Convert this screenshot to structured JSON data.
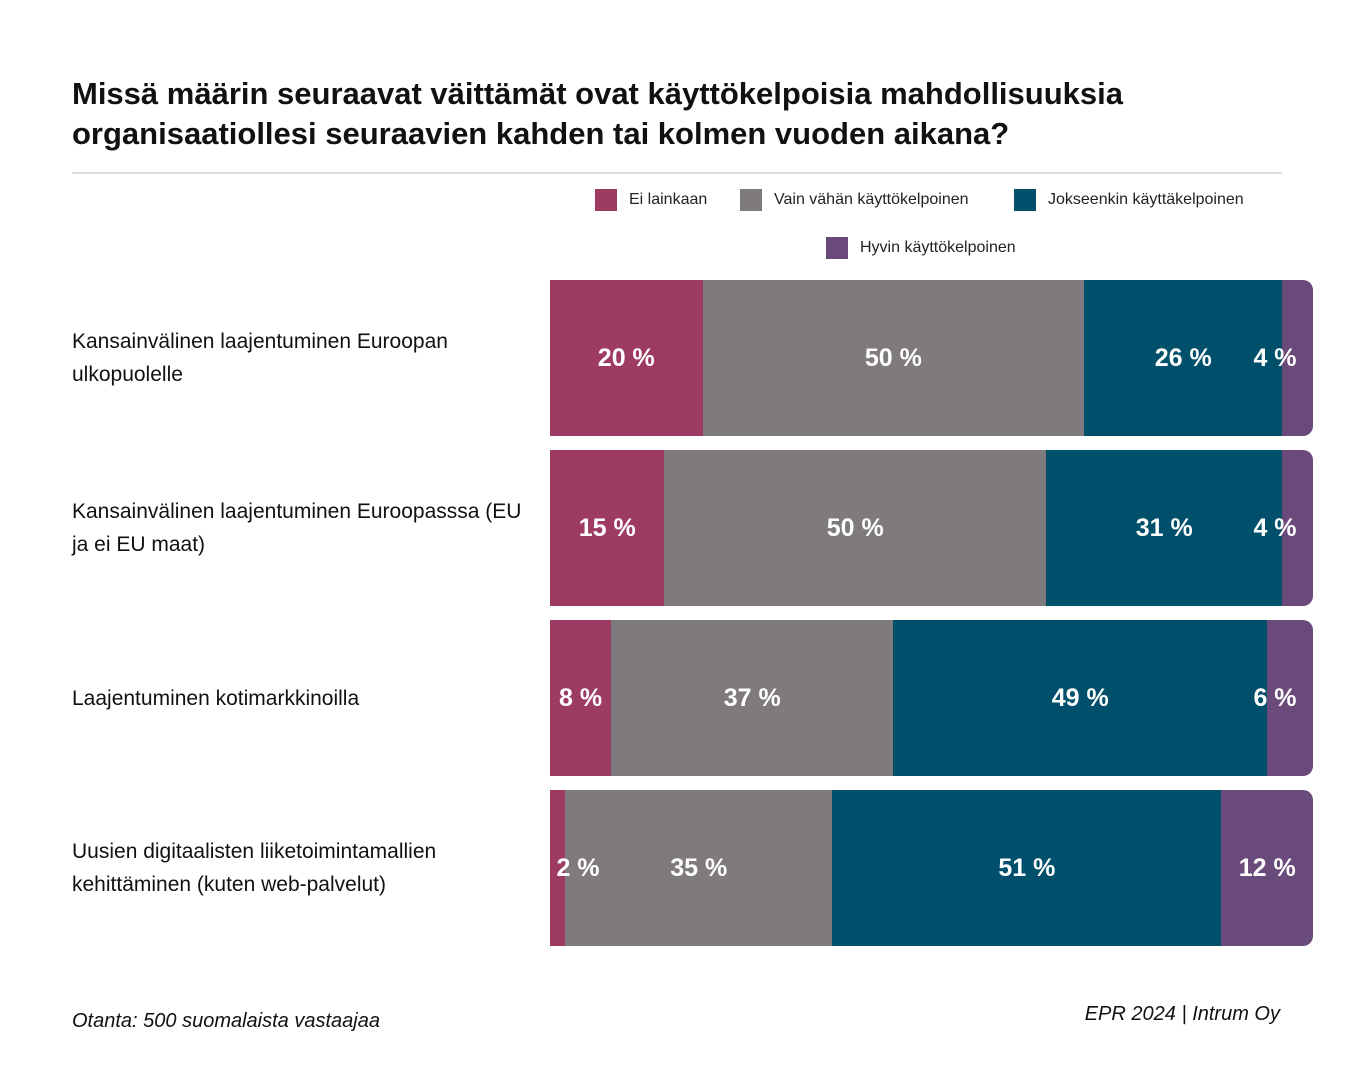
{
  "chart_data": {
    "type": "bar",
    "orientation": "horizontal-stacked-100",
    "title": "Missä määrin seuraavat väittämät ovat käyttökelpoisia mahdollisuuksia organisaatiollesi seuraavien kahden tai kolmen vuoden aikana?",
    "categories": [
      "Kansainvälinen laajentuminen Euroopan ulkopuolelle",
      "Kansainvälinen laajentuminen Euroopasssa (EU ja ei EU maat)",
      "Laajentuminen kotimarkkinoilla",
      "Uusien digitaalisten liiketoimintamallien kehittäminen (kuten web-palvelut)"
    ],
    "series": [
      {
        "name": "Ei lainkaan",
        "color": "#9e3b62",
        "values": [
          20,
          15,
          8,
          2
        ]
      },
      {
        "name": "Vain vähän käyttökelpoinen",
        "color": "#7f7a7e",
        "values": [
          50,
          50,
          37,
          35
        ]
      },
      {
        "name": "Jokseenkin käyttäkelpoinen",
        "color": "#00506b",
        "values": [
          26,
          31,
          49,
          51
        ]
      },
      {
        "name": "Hyvin käyttökelpoinen",
        "color": "#6a4a7a",
        "values": [
          4,
          4,
          6,
          12
        ]
      }
    ],
    "value_suffix": " %",
    "legend_placement": "top-right",
    "xlim": [
      0,
      100
    ]
  },
  "footer": {
    "sample": "Otanta: 500 suomalaista vastaajaa",
    "source": "EPR 2024 | Intrum Oy"
  }
}
